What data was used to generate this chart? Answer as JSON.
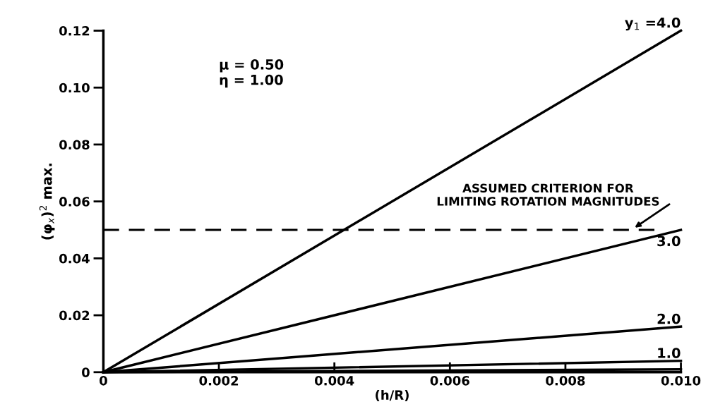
{
  "chart_data": {
    "type": "line",
    "xlabel": "(h/R)",
    "ylabel": "(φ$_{x}$)$^{2}$ max.",
    "x": [
      0,
      0.01
    ],
    "series": [
      {
        "name": "y$_{1}$ =4.0",
        "color": "#000000",
        "values": [
          0,
          0.12
        ]
      },
      {
        "name": "3.0",
        "color": "#000000",
        "values": [
          0,
          0.05
        ]
      },
      {
        "name": "2.0",
        "color": "#000000",
        "values": [
          0,
          0.016
        ]
      },
      {
        "name": "1.0",
        "color": "#000000",
        "values": [
          0,
          0.004
        ]
      },
      {
        "color": "#000000",
        "values": [
          0,
          0.001
        ]
      }
    ],
    "xlim": [
      0,
      0.01
    ],
    "ylim": [
      0,
      0.12
    ],
    "xticks": [
      {
        "value": 0,
        "label": "0"
      },
      0.002,
      0.004,
      0.006,
      0.008,
      {
        "value": 0.01,
        "label": "0.010"
      }
    ],
    "yticks": [
      {
        "value": 0,
        "label": "0"
      },
      0.02,
      0.04,
      0.06,
      0.08,
      {
        "value": 0.1,
        "label": "0.10"
      },
      0.12
    ],
    "ref_lines": [
      {
        "axis": "y",
        "value": 0.05,
        "label": "ASSUMED CRITERION FOR\nLIMITING ROTATION MAGNITUDES",
        "color": "#000000",
        "line_style": "dashed"
      }
    ],
    "annotations": [
      "μ = 0.50\nη = 1.00"
    ],
    "grid": false,
    "marker": "none",
    "line_style": "solid"
  }
}
